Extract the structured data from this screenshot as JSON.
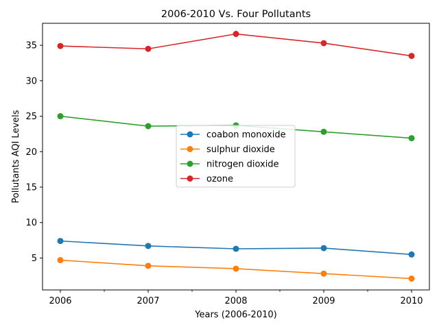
{
  "chart_data": {
    "type": "line",
    "title": "2006-2010 Vs. Four Pollutants",
    "xlabel": "Years (2006-2010)",
    "ylabel": "Pollutants AQI Levels",
    "categories": [
      "2006",
      "2007",
      "2008",
      "2009",
      "2010"
    ],
    "ylim": [
      0.5,
      38.1
    ],
    "yticks": [
      5,
      10,
      15,
      20,
      25,
      30,
      35
    ],
    "grid": false,
    "legend_position": "center",
    "series": [
      {
        "name": "coabon monoxide",
        "color": "#1f77b4",
        "values": [
          7.4,
          6.7,
          6.3,
          6.4,
          5.5
        ]
      },
      {
        "name": "sulphur dioxide",
        "color": "#ff7f0e",
        "values": [
          4.7,
          3.9,
          3.5,
          2.8,
          2.1
        ]
      },
      {
        "name": "nitrogen dioxide",
        "color": "#2ca02c",
        "values": [
          25.0,
          23.6,
          23.7,
          22.8,
          21.9
        ]
      },
      {
        "name": "ozone",
        "color": "#d62728",
        "values": [
          34.9,
          34.5,
          36.6,
          35.3,
          33.5
        ]
      }
    ]
  }
}
